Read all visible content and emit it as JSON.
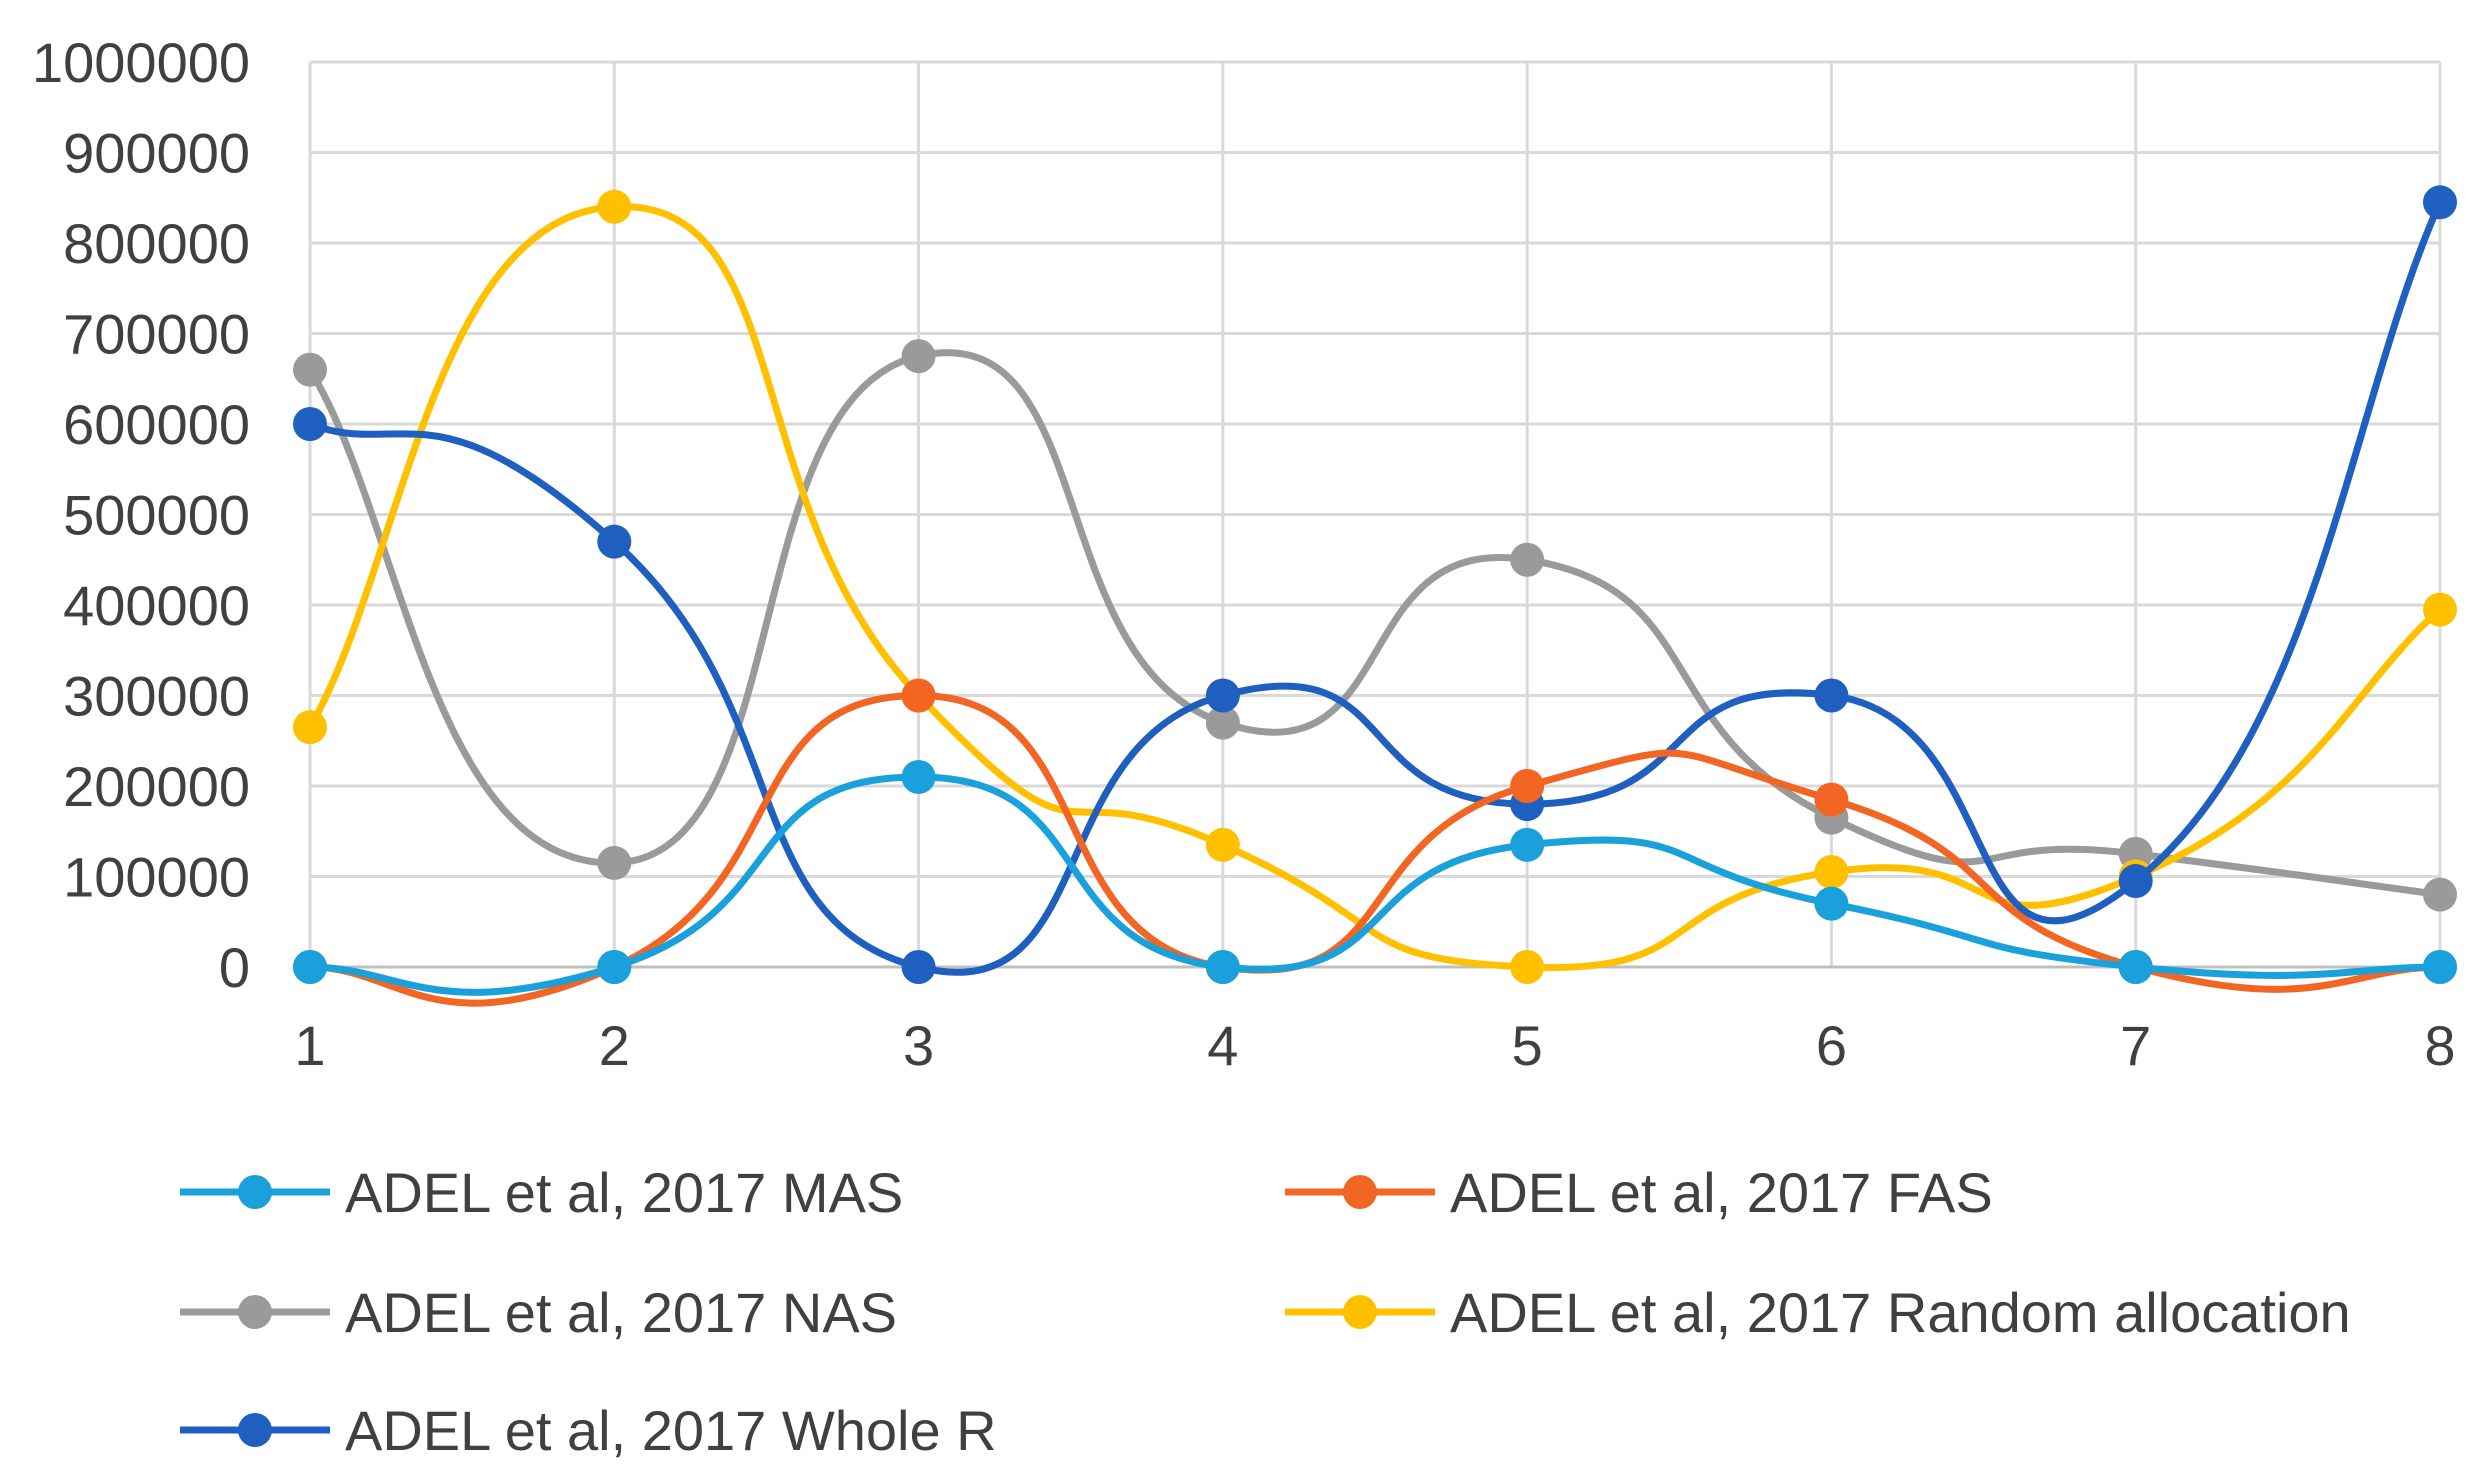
{
  "chart_data": {
    "type": "line",
    "smooth": true,
    "title": "",
    "xlabel": "",
    "ylabel": "",
    "x": [
      1,
      2,
      3,
      4,
      5,
      6,
      7,
      8
    ],
    "x_tick_labels": [
      "1",
      "2",
      "3",
      "4",
      "5",
      "6",
      "7",
      "8"
    ],
    "ylim": [
      0,
      1000000
    ],
    "y_ticks": [
      0,
      100000,
      200000,
      300000,
      400000,
      500000,
      600000,
      700000,
      800000,
      900000,
      1000000
    ],
    "y_tick_labels": [
      "0",
      "100000",
      "200000",
      "300000",
      "400000",
      "500000",
      "600000",
      "700000",
      "800000",
      "900000",
      "1000000"
    ],
    "grid": true,
    "legend_position": "bottom",
    "series": [
      {
        "name": "ADEL et al, 2017 MAS",
        "color": "#1aa0db",
        "values": [
          0,
          0,
          210000,
          0,
          135000,
          70000,
          0,
          0
        ]
      },
      {
        "name": "ADEL et al, 2017 FAS",
        "color": "#f26522",
        "values": [
          0,
          0,
          300000,
          0,
          200000,
          185000,
          0,
          0
        ]
      },
      {
        "name": "ADEL et al, 2017 NAS",
        "color": "#9a9a9a",
        "values": [
          660000,
          115000,
          675000,
          270000,
          450000,
          165000,
          125000,
          80000
        ]
      },
      {
        "name": "ADEL et al, 2017 Random allocation",
        "color": "#ffc000",
        "values": [
          265000,
          840000,
          300000,
          135000,
          0,
          105000,
          100000,
          395000
        ]
      },
      {
        "name": "ADEL et al, 2017 Whole R",
        "color": "#1f5fc0",
        "values": [
          600000,
          470000,
          0,
          300000,
          180000,
          300000,
          95000,
          845000
        ]
      }
    ],
    "draw_order": [
      2,
      3,
      4,
      1,
      0
    ]
  }
}
